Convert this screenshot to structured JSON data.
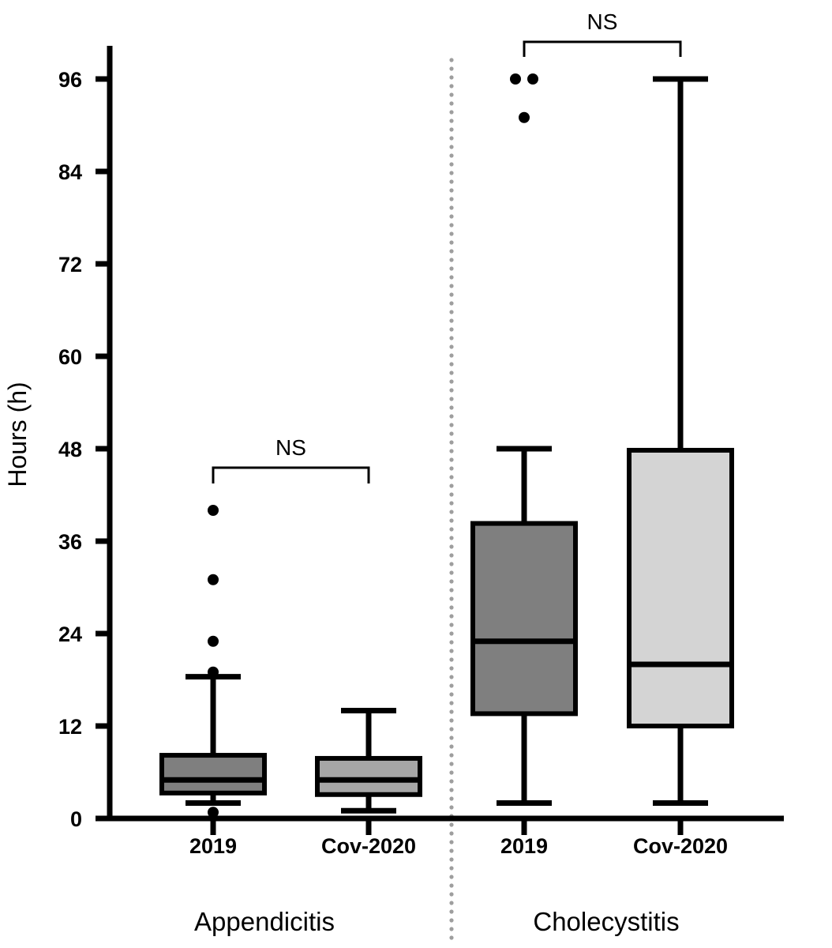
{
  "chart_data": {
    "type": "boxplot",
    "title": "",
    "ylabel": "Hours (h)",
    "xlabel": "",
    "ylim": [
      0,
      100
    ],
    "yticks": [
      0,
      12,
      24,
      36,
      48,
      60,
      72,
      84,
      96
    ],
    "grid": false,
    "divider": "dotted-vertical-line-between-groups",
    "colors": {
      "box_2019": "#7f7f7f",
      "box_cov2020_appendicitis": "#a6a6a6",
      "box_cov2020_cholecystitis": "#d4d4d4",
      "line": "#000000",
      "divider_dots": "#9e9e9e",
      "background": "#ffffff"
    },
    "groups": [
      {
        "label": "Appendicitis",
        "significance": "NS",
        "boxes": [
          {
            "label": "2019",
            "fill": "#7f7f7f",
            "whisker_low": 2,
            "q1": 3.3,
            "median": 5,
            "q3": 8.2,
            "whisker_high": 18.4,
            "outliers": [
              0.8,
              19,
              23,
              31,
              40
            ]
          },
          {
            "label": "Cov-2020",
            "fill": "#a6a6a6",
            "whisker_low": 1,
            "q1": 3.1,
            "median": 5,
            "q3": 7.8,
            "whisker_high": 14,
            "outliers": []
          }
        ]
      },
      {
        "label": "Cholecystitis",
        "significance": "NS",
        "boxes": [
          {
            "label": "2019",
            "fill": "#7f7f7f",
            "whisker_low": 2,
            "q1": 13.6,
            "median": 23,
            "q3": 38.3,
            "whisker_high": 48,
            "outliers": [
              91,
              96,
              96
            ]
          },
          {
            "label": "Cov-2020",
            "fill": "#d4d4d4",
            "whisker_low": 2,
            "q1": 12,
            "median": 20,
            "q3": 47.8,
            "whisker_high": 96,
            "outliers": []
          }
        ]
      }
    ]
  }
}
